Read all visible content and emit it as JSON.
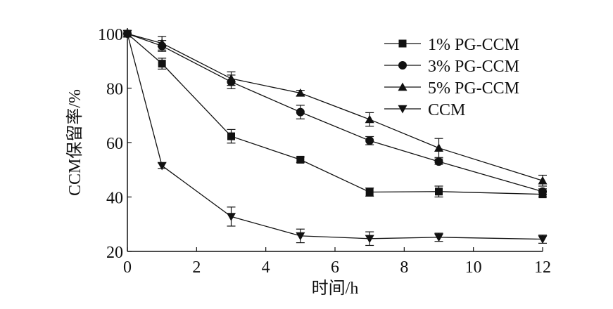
{
  "chart_data": {
    "type": "line",
    "xlabel": "时间/h",
    "ylabel": "CCM保留率/%",
    "xlim": [
      0,
      12
    ],
    "ylim": [
      20,
      100
    ],
    "xticks": [
      0,
      2,
      4,
      6,
      8,
      10,
      12
    ],
    "yticks": [
      20,
      40,
      60,
      80,
      100
    ],
    "grid": false,
    "legend_position": "top-right",
    "series": [
      {
        "name": "1% PG-CCM",
        "marker": "square",
        "x": [
          0,
          1,
          3,
          5,
          7,
          9,
          12
        ],
        "values": [
          100,
          89,
          62.3,
          53.7,
          41.8,
          42.0,
          41.0
        ],
        "errors": [
          0.5,
          2.0,
          2.5,
          1.0,
          1.5,
          2.0,
          1.0
        ]
      },
      {
        "name": "3% PG-CCM",
        "marker": "circle",
        "x": [
          0,
          1,
          3,
          5,
          7,
          9,
          12
        ],
        "values": [
          100,
          95.5,
          82.3,
          71.2,
          60.7,
          53.0,
          42.0
        ],
        "errors": [
          0.5,
          2.0,
          2.5,
          2.5,
          1.5,
          1.0,
          1.0
        ]
      },
      {
        "name": "5% PG-CCM",
        "marker": "triangle-up",
        "x": [
          0,
          1,
          3,
          5,
          7,
          9,
          12
        ],
        "values": [
          100,
          96.5,
          83.5,
          78.2,
          68.5,
          58.0,
          46.0
        ],
        "errors": [
          0.5,
          2.5,
          2.5,
          1.0,
          2.5,
          3.5,
          2.0
        ]
      },
      {
        "name": "CCM",
        "marker": "triangle-down",
        "x": [
          0,
          1,
          3,
          5,
          7,
          9,
          12
        ],
        "values": [
          100,
          51.5,
          32.8,
          25.7,
          24.7,
          25.2,
          24.5
        ],
        "errors": [
          0.5,
          1.0,
          3.5,
          2.5,
          2.5,
          1.5,
          1.5
        ]
      }
    ]
  }
}
